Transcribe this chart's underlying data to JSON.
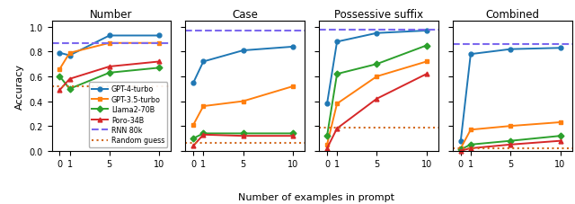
{
  "subplots": [
    "Number",
    "Case",
    "Possessive suffix",
    "Combined"
  ],
  "x_values": [
    0,
    1,
    5,
    10
  ],
  "series": {
    "GPT-4-turbo": {
      "color": "#1f77b4",
      "marker": "o",
      "linestyle": "-",
      "Number": [
        0.79,
        0.77,
        0.93,
        0.93
      ],
      "Case": [
        0.55,
        0.72,
        0.81,
        0.84
      ],
      "Possessive suffix": [
        0.38,
        0.88,
        0.95,
        0.97
      ],
      "Combined": [
        0.08,
        0.78,
        0.82,
        0.83
      ]
    },
    "GPT-3.5-turbo": {
      "color": "#ff7f0e",
      "marker": "s",
      "linestyle": "-",
      "Number": [
        0.66,
        0.79,
        0.87,
        0.87
      ],
      "Case": [
        0.21,
        0.36,
        0.4,
        0.52
      ],
      "Possessive suffix": [
        0.05,
        0.38,
        0.6,
        0.72
      ],
      "Combined": [
        0.02,
        0.17,
        0.2,
        0.23
      ]
    },
    "Llama2-70B": {
      "color": "#2ca02c",
      "marker": "D",
      "linestyle": "-",
      "Number": [
        0.6,
        0.5,
        0.63,
        0.67
      ],
      "Case": [
        0.1,
        0.14,
        0.14,
        0.14
      ],
      "Possessive suffix": [
        0.12,
        0.62,
        0.7,
        0.85
      ],
      "Combined": [
        0.01,
        0.05,
        0.08,
        0.12
      ]
    },
    "Poro-34B": {
      "color": "#d62728",
      "marker": "^",
      "linestyle": "-",
      "Number": [
        0.49,
        0.58,
        0.68,
        0.72
      ],
      "Case": [
        0.04,
        0.13,
        0.12,
        0.12
      ],
      "Possessive suffix": [
        0.02,
        0.18,
        0.42,
        0.62
      ],
      "Combined": [
        0.0,
        0.02,
        0.05,
        0.08
      ]
    }
  },
  "RNN_80k": {
    "color": "#7b68ee",
    "linestyle": "--",
    "Number": 0.87,
    "Case": 0.97,
    "Possessive suffix": 0.98,
    "Combined": 0.86
  },
  "Random_guess": {
    "color": "#d2691e",
    "linestyle": ":",
    "Number": 0.52,
    "Case": 0.065,
    "Possessive suffix": 0.19,
    "Combined": 0.02
  },
  "ylabel": "Accuracy",
  "xlabel": "Number of examples in prompt",
  "ylim": [
    0.0,
    1.05
  ],
  "yticks": [
    0.0,
    0.2,
    0.4,
    0.6,
    0.8,
    1.0
  ]
}
